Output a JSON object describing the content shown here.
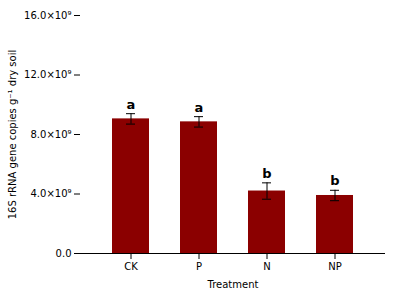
{
  "chart_data": {
    "type": "bar",
    "categories": [
      "CK",
      "P",
      "N",
      "NP"
    ],
    "values": [
      9050000000.0,
      8850000000.0,
      4200000000.0,
      3900000000.0
    ],
    "errors": [
      350000000.0,
      350000000.0,
      550000000.0,
      350000000.0
    ],
    "annotations": [
      "a",
      "a",
      "b",
      "b"
    ],
    "color": "#8B0000",
    "xlabel": "Treatment",
    "ylabel": "16S rRNA gene copies g⁻¹ dry soil",
    "ylim": [
      0,
      16000000000.0
    ],
    "yticks": [
      {
        "value": 0.0,
        "label": "0.0"
      },
      {
        "value": 4000000000.0,
        "label": "4.0×10⁹"
      },
      {
        "value": 8000000000.0,
        "label": "8.0×10⁹"
      },
      {
        "value": 12000000000.0,
        "label": "12.0×10⁹"
      },
      {
        "value": 16000000000.0,
        "label": "16.0×10⁹"
      }
    ],
    "grid": false
  }
}
